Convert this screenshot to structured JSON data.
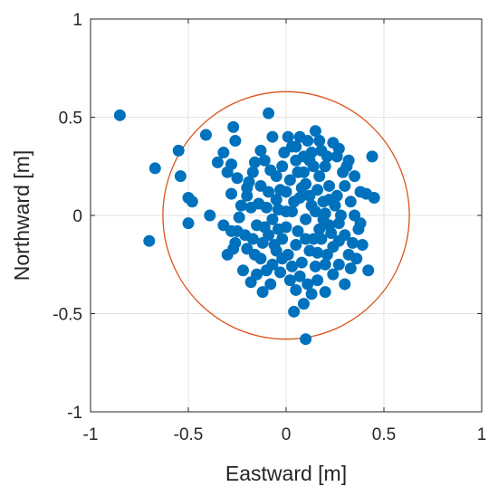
{
  "chart_data": {
    "type": "scatter",
    "xlabel": "Eastward [m]",
    "ylabel": "Northward [m]",
    "xlim": [
      -1,
      1
    ],
    "ylim": [
      -1,
      1
    ],
    "xticks": [
      -1,
      -0.5,
      0,
      0.5,
      1
    ],
    "yticks": [
      -1,
      -0.5,
      0,
      0.5,
      1
    ],
    "xtick_labels": [
      "-1",
      "-0.5",
      "0",
      "0.5",
      "1"
    ],
    "ytick_labels": [
      "-1",
      "-0.5",
      "0",
      "0.5",
      "1"
    ],
    "grid": true,
    "colors": {
      "points": "#0072BD",
      "circle": "#D95319",
      "grid": "#e3e3e3",
      "axes": "#262626"
    },
    "circle": {
      "center": [
        0.0,
        0.0
      ],
      "radius": 0.63
    },
    "points": [
      [
        -0.85,
        0.51
      ],
      [
        -0.67,
        0.24
      ],
      [
        -0.55,
        0.33
      ],
      [
        -0.54,
        0.2
      ],
      [
        -0.7,
        -0.13
      ],
      [
        -0.5,
        -0.04
      ],
      [
        -0.5,
        0.09
      ],
      [
        -0.48,
        0.07
      ],
      [
        -0.41,
        0.41
      ],
      [
        -0.39,
        0.0
      ],
      [
        -0.35,
        0.27
      ],
      [
        -0.32,
        0.32
      ],
      [
        -0.3,
        0.22
      ],
      [
        -0.28,
        0.11
      ],
      [
        -0.27,
        0.45
      ],
      [
        -0.26,
        0.38
      ],
      [
        -0.32,
        -0.05
      ],
      [
        -0.28,
        -0.08
      ],
      [
        -0.27,
        -0.17
      ],
      [
        -0.25,
        -0.08
      ],
      [
        -0.2,
        0.1
      ],
      [
        -0.18,
        0.04
      ],
      [
        -0.17,
        0.22
      ],
      [
        -0.15,
        -0.05
      ],
      [
        -0.13,
        0.15
      ],
      [
        -0.11,
        0.28
      ],
      [
        -0.09,
        0.52
      ],
      [
        -0.07,
        0.4
      ],
      [
        -0.1,
        0.04
      ],
      [
        -0.12,
        -0.14
      ],
      [
        -0.2,
        -0.17
      ],
      [
        -0.22,
        -0.28
      ],
      [
        -0.18,
        -0.34
      ],
      [
        -0.13,
        -0.22
      ],
      [
        -0.1,
        -0.28
      ],
      [
        -0.08,
        -0.35
      ],
      [
        -0.05,
        -0.18
      ],
      [
        -0.04,
        -0.07
      ],
      [
        -0.03,
        0.13
      ],
      [
        -0.05,
        0.2
      ],
      [
        -0.01,
        0.32
      ],
      [
        0.03,
        0.35
      ],
      [
        0.05,
        0.28
      ],
      [
        0.07,
        0.4
      ],
      [
        0.09,
        0.3
      ],
      [
        0.11,
        0.38
      ],
      [
        0.15,
        0.43
      ],
      [
        0.18,
        0.33
      ],
      [
        0.2,
        0.25
      ],
      [
        0.24,
        0.37
      ],
      [
        0.26,
        0.3
      ],
      [
        0.29,
        0.22
      ],
      [
        0.32,
        0.28
      ],
      [
        0.35,
        0.2
      ],
      [
        0.38,
        0.12
      ],
      [
        0.41,
        0.11
      ],
      [
        0.45,
        0.09
      ],
      [
        0.44,
        0.3
      ],
      [
        0.42,
        -0.28
      ],
      [
        0.36,
        -0.22
      ],
      [
        0.34,
        -0.14
      ],
      [
        0.37,
        -0.07
      ],
      [
        0.3,
        -0.1
      ],
      [
        0.28,
        0.0
      ],
      [
        0.25,
        0.05
      ],
      [
        0.22,
        -0.05
      ],
      [
        0.19,
        0.07
      ],
      [
        0.16,
        0.13
      ],
      [
        0.13,
        0.05
      ],
      [
        0.1,
        -0.02
      ],
      [
        0.07,
        0.09
      ],
      [
        0.03,
        0.02
      ],
      [
        0.0,
        -0.06
      ],
      [
        -0.02,
        -0.12
      ],
      [
        0.01,
        -0.2
      ],
      [
        0.05,
        -0.15
      ],
      [
        0.08,
        -0.24
      ],
      [
        0.12,
        -0.18
      ],
      [
        0.15,
        -0.26
      ],
      [
        0.18,
        -0.12
      ],
      [
        0.21,
        -0.2
      ],
      [
        0.24,
        -0.3
      ],
      [
        0.27,
        -0.25
      ],
      [
        0.3,
        -0.35
      ],
      [
        0.2,
        -0.39
      ],
      [
        0.16,
        -0.33
      ],
      [
        0.13,
        -0.4
      ],
      [
        0.09,
        -0.45
      ],
      [
        0.05,
        -0.38
      ],
      [
        0.04,
        -0.49
      ],
      [
        0.1,
        -0.63
      ],
      [
        0.02,
        -0.33
      ],
      [
        -0.03,
        -0.29
      ],
      [
        -0.07,
        -0.25
      ],
      [
        -0.15,
        -0.3
      ],
      [
        -0.12,
        -0.39
      ],
      [
        -0.16,
        -0.2
      ],
      [
        -0.21,
        -0.1
      ],
      [
        -0.24,
        -0.01
      ],
      [
        -0.19,
        0.17
      ],
      [
        -0.23,
        0.05
      ],
      [
        -0.16,
        0.27
      ],
      [
        -0.13,
        0.33
      ],
      [
        -0.08,
        0.23
      ],
      [
        -0.02,
        0.25
      ],
      [
        0.02,
        0.18
      ],
      [
        0.06,
        0.22
      ],
      [
        0.1,
        0.16
      ],
      [
        0.14,
        0.25
      ],
      [
        0.17,
        0.2
      ],
      [
        0.22,
        0.15
      ],
      [
        0.26,
        0.1
      ],
      [
        0.3,
        0.15
      ],
      [
        0.33,
        0.07
      ],
      [
        0.35,
        0.0
      ],
      [
        0.38,
        -0.04
      ],
      [
        0.39,
        -0.15
      ],
      [
        0.32,
        -0.2
      ],
      [
        0.27,
        -0.13
      ],
      [
        0.23,
        -0.09
      ],
      [
        0.19,
        -0.02
      ],
      [
        0.15,
        0.02
      ],
      [
        0.12,
        0.1
      ],
      [
        0.08,
        0.14
      ],
      [
        0.04,
        0.07
      ],
      [
        0.0,
        0.12
      ],
      [
        -0.04,
        0.03
      ],
      [
        -0.07,
        -0.02
      ],
      [
        -0.09,
        -0.1
      ],
      [
        -0.06,
        -0.15
      ],
      [
        -0.02,
        -0.22
      ],
      [
        0.03,
        -0.26
      ],
      [
        0.07,
        -0.31
      ],
      [
        0.11,
        -0.35
      ],
      [
        0.14,
        -0.12
      ],
      [
        0.17,
        -0.07
      ],
      [
        0.2,
        0.01
      ],
      [
        0.13,
        0.32
      ],
      [
        0.17,
        0.38
      ],
      [
        0.21,
        0.3
      ],
      [
        0.09,
        0.22
      ],
      [
        0.05,
        0.35
      ],
      [
        0.01,
        0.4
      ],
      [
        0.27,
        0.34
      ],
      [
        0.31,
        0.25
      ],
      [
        -0.09,
        0.12
      ],
      [
        -0.14,
        0.06
      ],
      [
        -0.11,
        -0.06
      ],
      [
        -0.17,
        -0.12
      ],
      [
        -0.26,
        -0.14
      ],
      [
        -0.3,
        -0.2
      ],
      [
        -0.25,
        0.19
      ],
      [
        -0.2,
        0.14
      ],
      [
        -0.28,
        0.26
      ],
      [
        0.24,
        -0.16
      ],
      [
        0.2,
        -0.25
      ],
      [
        0.27,
        -0.04
      ],
      [
        0.33,
        -0.27
      ],
      [
        0.06,
        -0.08
      ],
      [
        0.1,
        -0.12
      ],
      [
        0.0,
        0.02
      ],
      [
        -0.05,
        0.08
      ],
      [
        0.16,
        -0.19
      ],
      [
        0.22,
        0.08
      ],
      [
        0.12,
        0.28
      ]
    ]
  }
}
